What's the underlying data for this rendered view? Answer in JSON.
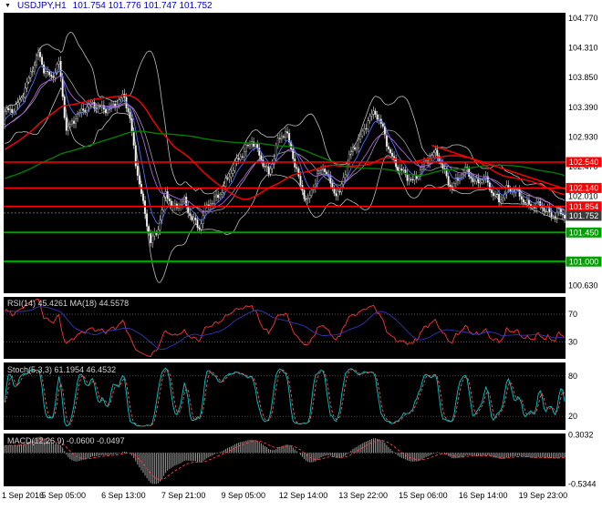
{
  "header": {
    "dropdown_icon": "▼",
    "symbol": "USDJPY,H1",
    "quotes": "101.754 101.776 101.747 101.752"
  },
  "panels": {
    "rsi": {
      "label": "RSI(14) 45.4261  MA(18) 44.5578",
      "ticks": [
        "70",
        "30"
      ]
    },
    "stoch": {
      "label": "Stoch(5,3,3) 61.1954 46.4532",
      "ticks": [
        "80",
        "20"
      ]
    },
    "macd": {
      "label": "MACD(12,26,9) -0.0600 -0.0497",
      "ticks": [
        "0.3032",
        "-0.5344"
      ]
    }
  },
  "chart_data": {
    "type": "candlestick",
    "title": "USDJPY,H1",
    "symbol": "USDJPY",
    "timeframe": "H1",
    "ohlc_quote": {
      "open": "101.754",
      "high": "101.776",
      "low": "101.747",
      "close": "101.752"
    },
    "bars": 300,
    "axis": {
      "top_tick_price": 104.77,
      "bottom_tick_price": 100.63,
      "plain_ticks": [
        "104.770",
        "104.310",
        "103.850",
        "103.390",
        "102.930",
        "102.470",
        "102.010",
        "100.630"
      ]
    },
    "x_labels": [
      "1 Sep 2016",
      "5 Sep 05:00",
      "6 Sep 13:00",
      "7 Sep 21:00",
      "9 Sep 05:00",
      "12 Sep 14:00",
      "13 Sep 22:00",
      "15 Sep 06:00",
      "16 Sep 14:00",
      "19 Sep 23:00"
    ],
    "x_label_bars": [
      0,
      32,
      64,
      96,
      128,
      160,
      192,
      224,
      256,
      288
    ],
    "price_waypoints": [
      [
        0,
        103.28
      ],
      [
        6,
        103.42
      ],
      [
        12,
        103.72
      ],
      [
        18,
        104.22
      ],
      [
        21,
        104.02
      ],
      [
        25,
        103.85
      ],
      [
        29,
        104.05
      ],
      [
        33,
        103.02
      ],
      [
        38,
        103.28
      ],
      [
        48,
        103.42
      ],
      [
        58,
        103.38
      ],
      [
        64,
        103.55
      ],
      [
        67,
        103.25
      ],
      [
        70,
        102.55
      ],
      [
        74,
        101.85
      ],
      [
        78,
        101.28
      ],
      [
        82,
        101.55
      ],
      [
        86,
        102.1
      ],
      [
        90,
        101.78
      ],
      [
        96,
        101.95
      ],
      [
        100,
        101.7
      ],
      [
        104,
        101.5
      ],
      [
        108,
        101.85
      ],
      [
        114,
        102.05
      ],
      [
        120,
        102.3
      ],
      [
        126,
        102.65
      ],
      [
        132,
        102.9
      ],
      [
        137,
        102.55
      ],
      [
        141,
        102.35
      ],
      [
        146,
        102.9
      ],
      [
        150,
        103.0
      ],
      [
        154,
        102.6
      ],
      [
        158,
        102.2
      ],
      [
        162,
        101.95
      ],
      [
        167,
        102.3
      ],
      [
        171,
        102.45
      ],
      [
        175,
        102.15
      ],
      [
        179,
        102.05
      ],
      [
        184,
        102.6
      ],
      [
        189,
        102.9
      ],
      [
        194,
        103.2
      ],
      [
        198,
        103.28
      ],
      [
        202,
        103.05
      ],
      [
        206,
        102.7
      ],
      [
        210,
        102.45
      ],
      [
        214,
        102.3
      ],
      [
        218,
        102.25
      ],
      [
        222,
        102.45
      ],
      [
        227,
        102.6
      ],
      [
        231,
        102.65
      ],
      [
        235,
        102.4
      ],
      [
        239,
        102.15
      ],
      [
        243,
        102.3
      ],
      [
        247,
        102.4
      ],
      [
        251,
        102.25
      ],
      [
        256,
        102.3
      ],
      [
        260,
        102.05
      ],
      [
        264,
        101.95
      ],
      [
        268,
        102.15
      ],
      [
        272,
        102.1
      ],
      [
        276,
        101.95
      ],
      [
        280,
        101.88
      ],
      [
        284,
        101.92
      ],
      [
        288,
        101.8
      ],
      [
        292,
        101.68
      ],
      [
        296,
        101.78
      ],
      [
        299,
        101.75
      ]
    ],
    "horizontal_lines": [
      {
        "price": 102.54,
        "label": "102.540",
        "color": "#FF0000",
        "width": 1.6
      },
      {
        "price": 102.14,
        "label": "102.140",
        "color": "#FF0000",
        "width": 1.6
      },
      {
        "price": 101.854,
        "label": "101.854",
        "color": "#FF0000",
        "width": 1.6
      },
      {
        "price": 101.45,
        "label": "101.450",
        "color": "#00A000",
        "width": 2
      },
      {
        "price": 101.0,
        "label": "101.000",
        "color": "#00A000",
        "width": 2.4
      }
    ],
    "current_price": {
      "value": 101.752,
      "label": "101.752",
      "color": "#3C3C3C"
    },
    "trendline": {
      "from_bar": 228,
      "from_price": 102.8,
      "to_bar": 307,
      "to_price": 102.05,
      "color": "#FF0000"
    },
    "overlays": {
      "bollinger": {
        "period": 20,
        "deviation": 2,
        "color": "#BDBDBD"
      },
      "ma_fast": [
        {
          "period": 8,
          "type": "ema",
          "color": "#5070FF"
        },
        {
          "period": 21,
          "type": "ema",
          "color": "#B060E0"
        }
      ],
      "ma_slow": [
        {
          "period": 60,
          "type": "sma",
          "color": "#FF0000"
        },
        {
          "period": 150,
          "type": "sma",
          "color": "#007C00"
        }
      ]
    },
    "indicators": {
      "rsi": {
        "period": 14,
        "ma_period": 18,
        "color": "#FF3232",
        "ma_color": "#3535B5",
        "levels": [
          70,
          30
        ]
      },
      "stoch": {
        "k": 5,
        "d": 3,
        "slowing": 3,
        "color": "#00C8C8",
        "signal_color": "#FF5050",
        "levels": [
          80,
          20
        ]
      },
      "macd": {
        "fast": 12,
        "slow": 26,
        "signal": 9,
        "hist_color": "#9B9B9B",
        "signal_color": "#FF4040"
      }
    },
    "candle_colors": {
      "bull_fill": "#000000",
      "bear_fill": "#FFFFFF",
      "outline": "#C8C8C8",
      "background": "#000000"
    }
  }
}
